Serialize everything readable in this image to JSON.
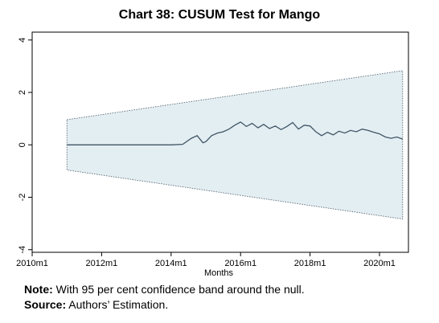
{
  "colors": {
    "band_fill": "#e3eef2",
    "band_border": "#4a5a66",
    "cusum_line": "#3f5566",
    "axis": "#000000"
  },
  "chart_data": {
    "type": "line",
    "title": "Chart 38: CUSUM Test for Mango",
    "xlabel": "Months",
    "ylabel": "",
    "x_tick_labels": [
      "2010m1",
      "2012m1",
      "2014m1",
      "2016m1",
      "2018m1",
      "2020m1"
    ],
    "y_tick_labels": [
      "-4",
      "-2",
      "0",
      "2",
      "4"
    ],
    "x_range": [
      "2010m1",
      "2020m10"
    ],
    "ylim": [
      -4.1,
      4.3
    ],
    "grid": false,
    "confidence_band": {
      "description": "95 per cent confidence band",
      "start": "2011m1",
      "end": "2020m9",
      "upper": [
        0.96,
        2.83
      ],
      "lower": [
        -0.96,
        -2.83
      ]
    },
    "series": [
      {
        "x": [
          "2011m1",
          "2012m1",
          "2013m1",
          "2014m1",
          "2014m5",
          "2014m8",
          "2014m10",
          "2014m12",
          "2015m1",
          "2015m3",
          "2015m5",
          "2015m7",
          "2015m9",
          "2015m11",
          "2016m1",
          "2016m3",
          "2016m5",
          "2016m7",
          "2016m9",
          "2016m11",
          "2017m1",
          "2017m3",
          "2017m5",
          "2017m7",
          "2017m9",
          "2017m11",
          "2018m1",
          "2018m3",
          "2018m5",
          "2018m7",
          "2018m9",
          "2018m11",
          "2019m1",
          "2019m3",
          "2019m5",
          "2019m7",
          "2019m9",
          "2019m11",
          "2020m1",
          "2020m3",
          "2020m5",
          "2020m7",
          "2020m9"
        ],
        "y": [
          0,
          0,
          0,
          0,
          0.02,
          0.25,
          0.35,
          0.08,
          0.12,
          0.35,
          0.45,
          0.5,
          0.6,
          0.75,
          0.87,
          0.7,
          0.82,
          0.65,
          0.78,
          0.62,
          0.72,
          0.58,
          0.7,
          0.85,
          0.6,
          0.75,
          0.72,
          0.5,
          0.35,
          0.48,
          0.38,
          0.52,
          0.45,
          0.55,
          0.5,
          0.6,
          0.55,
          0.48,
          0.42,
          0.3,
          0.25,
          0.3,
          0.22
        ]
      }
    ]
  },
  "notes": {
    "note_label": "Note:",
    "note_text": " With 95 per cent confidence band around the null.",
    "source_label": "Source:",
    "source_text": " Authors’ Estimation."
  }
}
